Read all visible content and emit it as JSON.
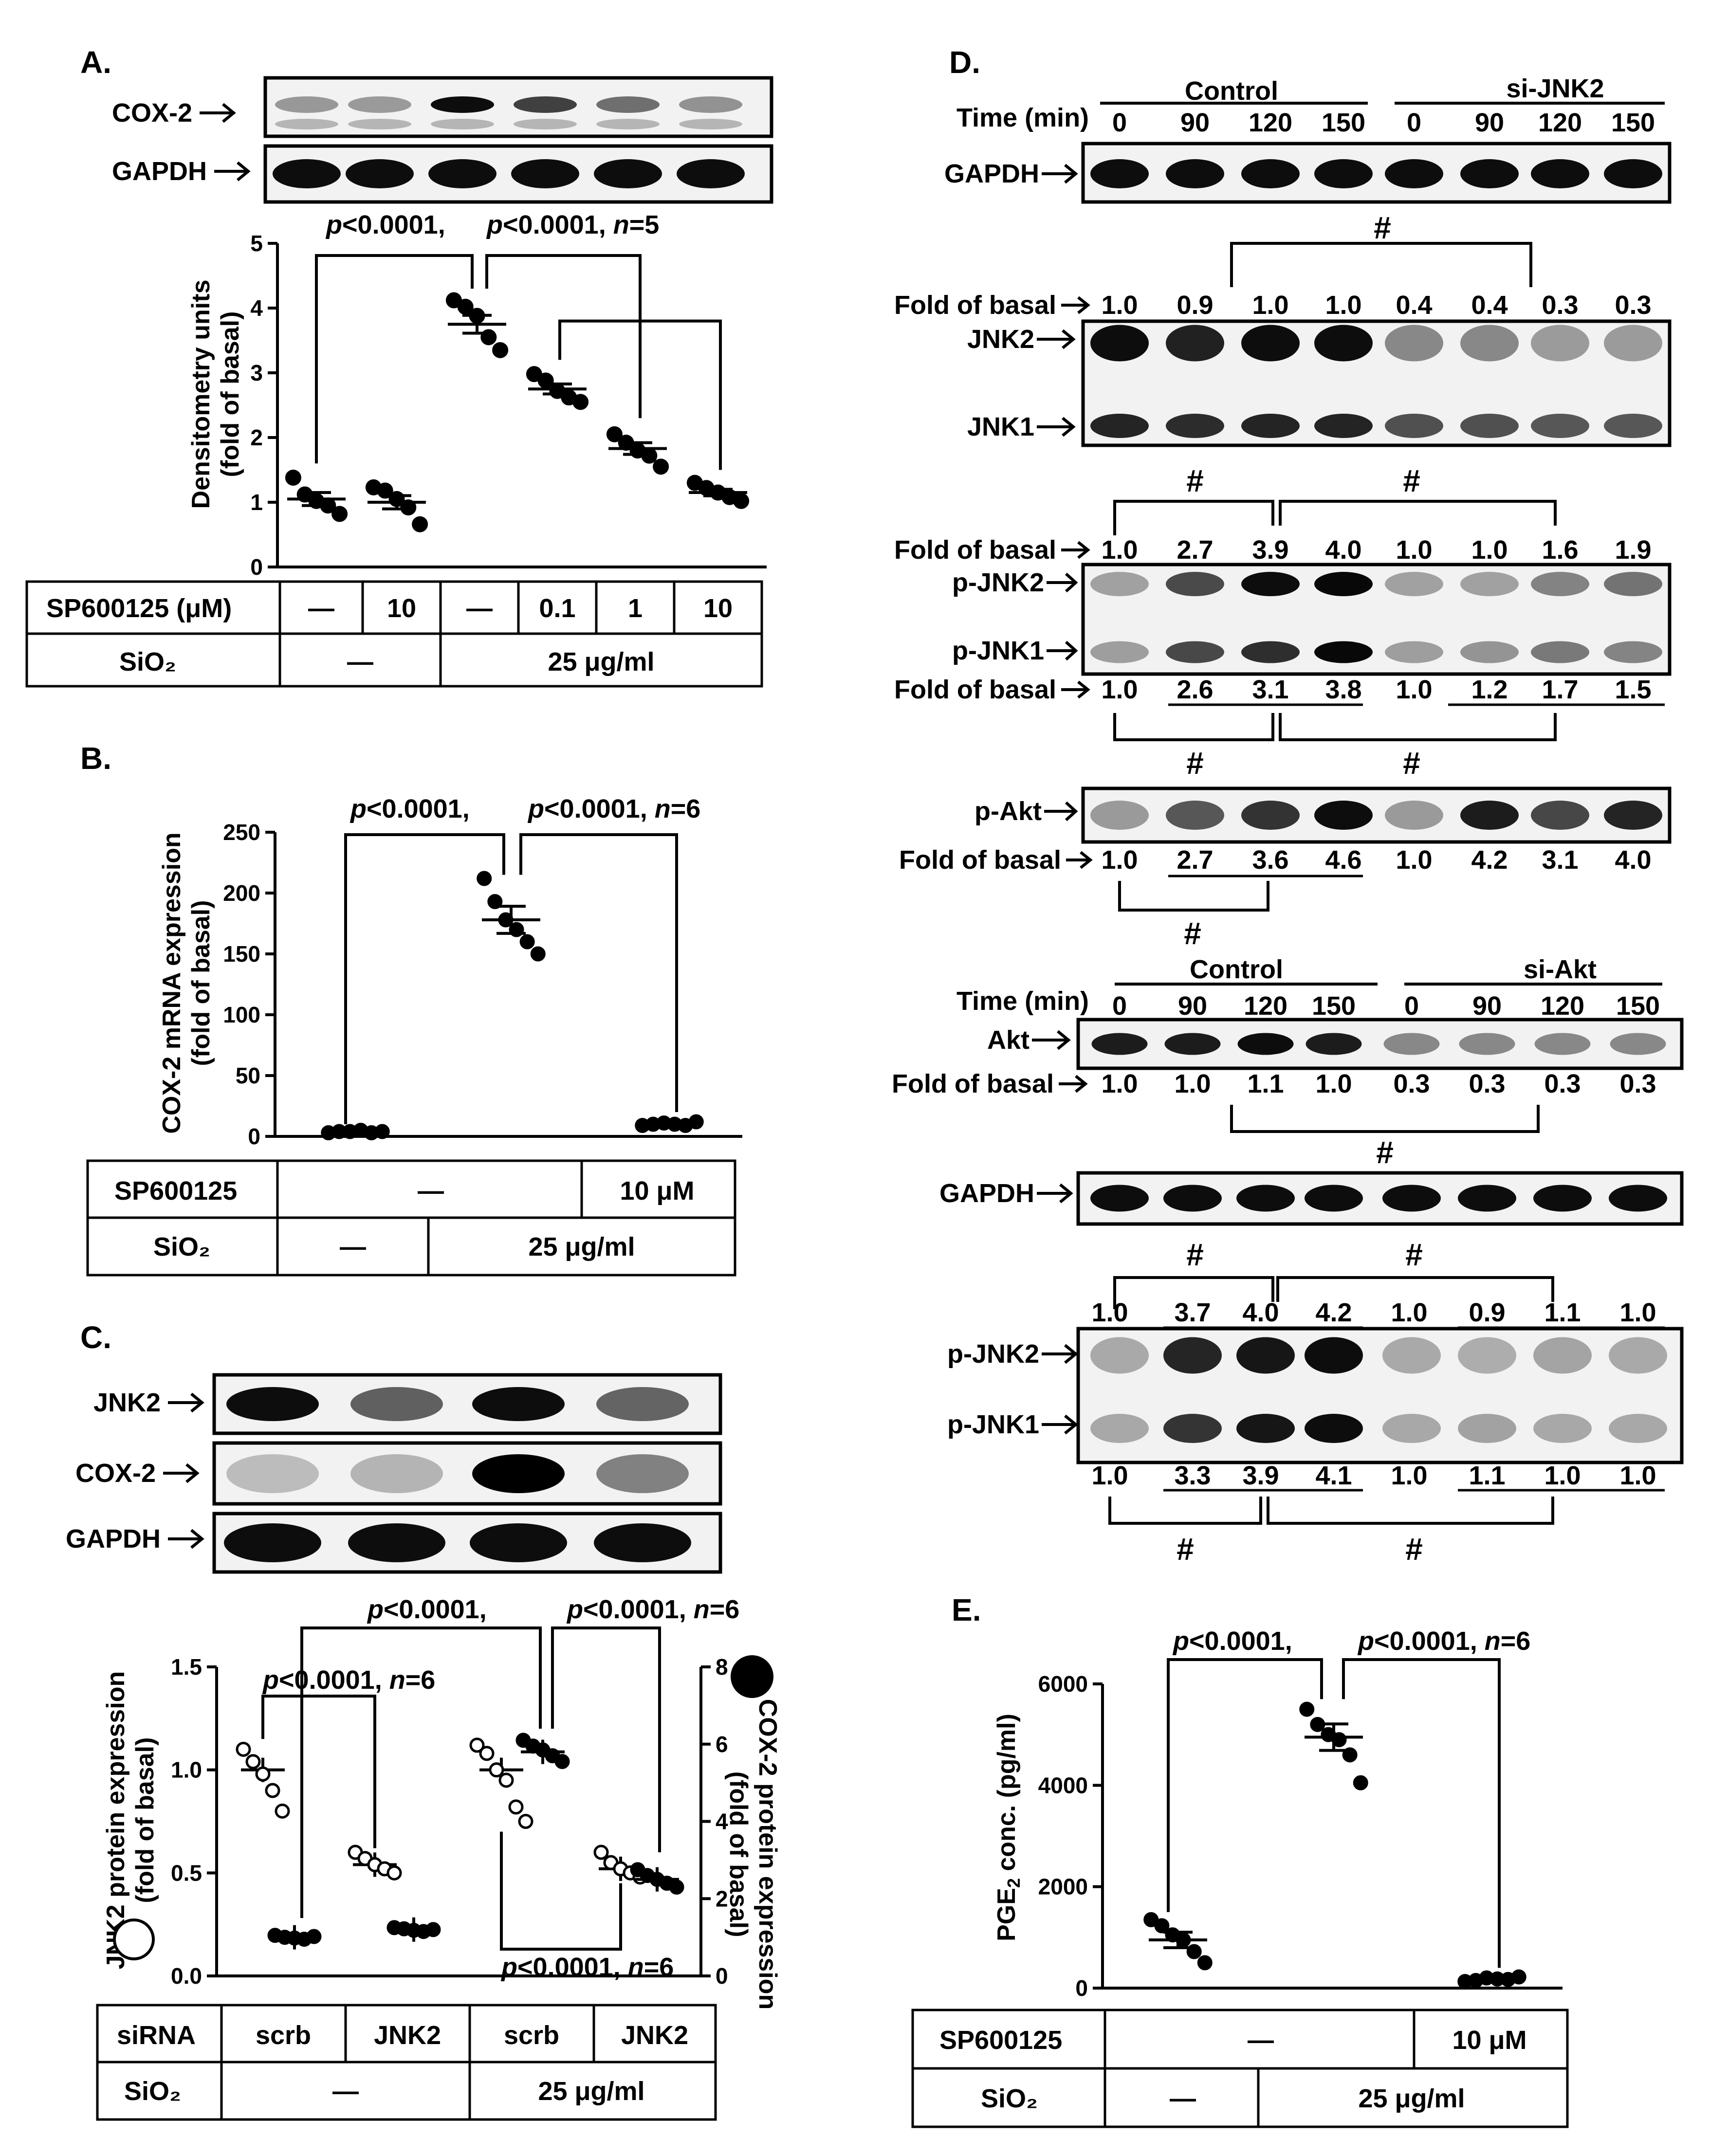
{
  "panel_A": {
    "label": "A.",
    "blot_rows": [
      "COX-2",
      "GAPDH"
    ],
    "stat": {
      "p1": "<0.0001,",
      "p2": "<0.0001,",
      "n": "5"
    },
    "chart_data": {
      "type": "scatter",
      "ylabel": "Densitometry units (fold of basal)",
      "ylim": [
        0,
        5
      ],
      "yticks": [
        "0",
        "1",
        "2",
        "3",
        "4",
        "5"
      ],
      "groups": [
        {
          "mean": 1.05,
          "points": [
            1.38,
            1.12,
            1.02,
            0.95,
            0.82
          ]
        },
        {
          "mean": 1.0,
          "points": [
            1.23,
            1.18,
            1.05,
            0.92,
            0.66
          ]
        },
        {
          "mean": 3.75,
          "points": [
            4.12,
            4.02,
            3.88,
            3.55,
            3.35
          ]
        },
        {
          "mean": 2.75,
          "points": [
            2.98,
            2.88,
            2.72,
            2.62,
            2.55
          ]
        },
        {
          "mean": 1.83,
          "points": [
            2.05,
            1.92,
            1.8,
            1.72,
            1.55
          ]
        },
        {
          "mean": 1.15,
          "points": [
            1.3,
            1.22,
            1.15,
            1.08,
            1.02
          ]
        }
      ],
      "table": {
        "row1_label": "SP600125 (μM)",
        "row1_values": [
          "—",
          "10",
          "—",
          "0.1",
          "1",
          "10"
        ],
        "row2_label": "SiO₂",
        "row2_values": [
          "—",
          "25 μg/ml"
        ]
      }
    }
  },
  "panel_B": {
    "label": "B.",
    "stat": {
      "p1": "<0.0001,",
      "p2": "<0.0001,",
      "n": "6"
    },
    "chart_data": {
      "type": "scatter",
      "ylabel": "COX-2 mRNA expression (fold of basal)",
      "ylim": [
        0,
        250
      ],
      "yticks": [
        "0",
        "50",
        "100",
        "150",
        "200",
        "250"
      ],
      "groups": [
        {
          "mean": 4,
          "points": [
            3,
            4,
            4,
            5,
            3,
            4
          ]
        },
        {
          "mean": 178,
          "points": [
            212,
            193,
            178,
            170,
            160,
            150
          ]
        },
        {
          "mean": 10,
          "points": [
            9,
            10,
            11,
            10,
            9,
            12
          ]
        }
      ],
      "table": {
        "row1_label": "SP600125",
        "row1_values": [
          "—",
          "10 μM"
        ],
        "row2_label": "SiO₂",
        "row2_values": [
          "—",
          "25 μg/ml"
        ]
      }
    }
  },
  "panel_C": {
    "label": "C.",
    "blot_rows": [
      "JNK2",
      "COX-2",
      "GAPDH"
    ],
    "stat": {
      "top_p1": "<0.0001,",
      "top_p2": "<0.0001,",
      "top_n": "6",
      "mid_p": "<0.0001,",
      "mid_n": "6",
      "bot_p": "<0.0001,",
      "bot_n": "6"
    },
    "chart_data": {
      "type": "scatter",
      "ylabel_left": "JNK2 protein expression (fold of basal)",
      "ylabel_right": "COX-2 protein expression (fold of basal)",
      "ylim_left": [
        0,
        1.5
      ],
      "ylim_right": [
        0,
        8
      ],
      "yticks_left": [
        "0.0",
        "0.5",
        "1.0",
        "1.5"
      ],
      "yticks_right": [
        "0",
        "2",
        "4",
        "6",
        "8"
      ],
      "series": [
        {
          "name": "JNK2",
          "axis": "left",
          "groups": [
            {
              "mean": 1.0,
              "points": [
                1.1,
                1.04,
                0.98,
                0.9,
                0.8
              ]
            },
            {
              "mean": 0.54,
              "points": [
                0.6,
                0.57,
                0.54,
                0.52,
                0.5
              ]
            },
            {
              "mean": 1.0,
              "points": [
                1.12,
                1.08,
                1.0,
                0.95,
                0.82,
                0.75
              ]
            },
            {
              "mean": 0.52,
              "points": [
                0.6,
                0.55,
                0.52,
                0.5,
                0.48
              ]
            }
          ]
        },
        {
          "name": "COX-2",
          "axis": "right",
          "groups": [
            {
              "mean": 1.0,
              "points": [
                1.05,
                1.0,
                0.98,
                0.95,
                1.02
              ]
            },
            {
              "mean": 1.2,
              "points": [
                1.25,
                1.22,
                1.18,
                1.15,
                1.2
              ]
            },
            {
              "mean": 5.8,
              "points": [
                6.1,
                5.95,
                5.85,
                5.7,
                5.55
              ]
            },
            {
              "mean": 2.5,
              "points": [
                2.75,
                2.6,
                2.5,
                2.4,
                2.3
              ]
            }
          ]
        }
      ],
      "table": {
        "row1_label": "siRNA",
        "row1_values": [
          "scrb",
          "JNK2",
          "scrb",
          "JNK2"
        ],
        "row2_label": "SiO₂",
        "row2_values": [
          "—",
          "25 μg/ml"
        ]
      }
    }
  },
  "panel_D": {
    "label": "D.",
    "time_label": "Time (min)",
    "groups1": [
      "Control",
      "si-JNK2"
    ],
    "groups2": [
      "Control",
      "si-Akt"
    ],
    "times": [
      "0",
      "90",
      "120",
      "150",
      "0",
      "90",
      "120",
      "150"
    ],
    "fold_label": "Fold of basal",
    "hash": "#",
    "rows": {
      "gapdh": "GAPDH",
      "jnk2": "JNK2",
      "jnk1": "JNK1",
      "pjnk2": "p-JNK2",
      "pjnk1": "p-JNK1",
      "pakt": "p-Akt",
      "akt": "Akt"
    },
    "fold_jnk": [
      "1.0",
      "0.9",
      "1.0",
      "1.0",
      "0.4",
      "0.4",
      "0.3",
      "0.3"
    ],
    "fold_pjnk2": [
      "1.0",
      "2.7",
      "3.9",
      "4.0",
      "1.0",
      "1.0",
      "1.6",
      "1.9"
    ],
    "fold_pjnk1": [
      "1.0",
      "2.6",
      "3.1",
      "3.8",
      "1.0",
      "1.2",
      "1.7",
      "1.5"
    ],
    "fold_pakt": [
      "1.0",
      "2.7",
      "3.6",
      "4.6",
      "1.0",
      "4.2",
      "3.1",
      "4.0"
    ],
    "fold_akt": [
      "1.0",
      "1.0",
      "1.1",
      "1.0",
      "0.3",
      "0.3",
      "0.3",
      "0.3"
    ],
    "fold_pjnk2_b": [
      "1.0",
      "3.7",
      "4.0",
      "4.2",
      "1.0",
      "0.9",
      "1.1",
      "1.0"
    ],
    "fold_pjnk1_b": [
      "1.0",
      "3.3",
      "3.9",
      "4.1",
      "1.0",
      "1.1",
      "1.0",
      "1.0"
    ]
  },
  "panel_E": {
    "label": "E.",
    "stat": {
      "p1": "<0.0001,",
      "p2": "<0.0001,",
      "n": "6"
    },
    "chart_data": {
      "type": "scatter",
      "ylabel": "PGE₂ conc. (pg/ml)",
      "ylim": [
        0,
        6000
      ],
      "yticks": [
        "0",
        "2000",
        "4000",
        "6000"
      ],
      "groups": [
        {
          "mean": 950,
          "points": [
            1350,
            1230,
            1050,
            950,
            720,
            500
          ]
        },
        {
          "mean": 4950,
          "points": [
            5500,
            5200,
            5000,
            4900,
            4600,
            4050
          ]
        },
        {
          "mean": 180,
          "points": [
            130,
            150,
            200,
            180,
            170,
            220
          ]
        }
      ],
      "table": {
        "row1_label": "SP600125",
        "row1_values": [
          "—",
          "10 μM"
        ],
        "row2_label": "SiO₂",
        "row2_values": [
          "—",
          "25 μg/ml"
        ]
      }
    }
  }
}
